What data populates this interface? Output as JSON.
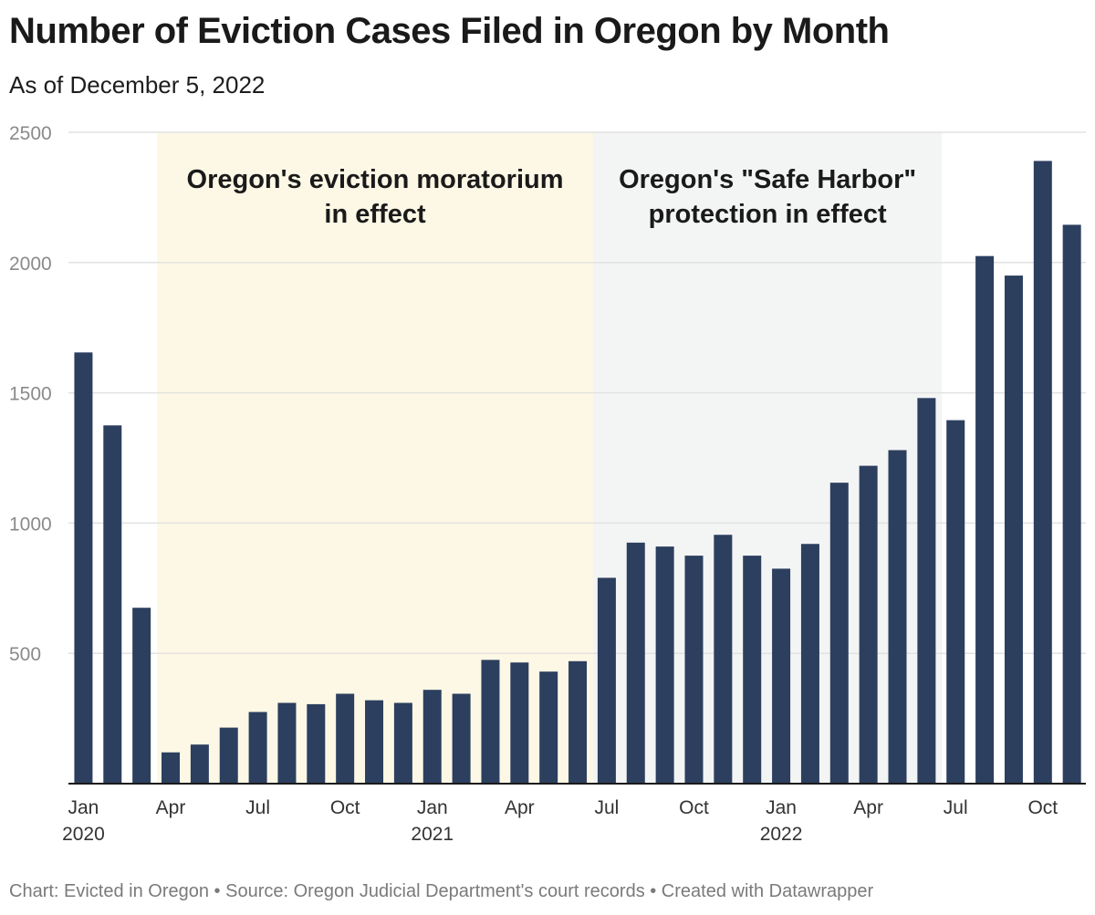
{
  "header": {
    "title": "Number of Eviction Cases Filed in Oregon by Month",
    "subtitle": "As of December 5, 2022"
  },
  "footer": {
    "credit": "Chart: Evicted in Oregon • Source: Oregon Judicial Department's court records • Created with Datawrapper"
  },
  "colors": {
    "bar": "#2c3f5f",
    "moratorium_band": "#fdf8e5",
    "safe_harbor_band": "#f3f4f4",
    "grid": "#e2e2e2",
    "axis": "#1a1a1a"
  },
  "chart_data": {
    "type": "bar",
    "title": "Number of Eviction Cases Filed in Oregon by Month",
    "subtitle": "As of December 5, 2022",
    "xlabel": "",
    "ylabel": "",
    "ylim": [
      0,
      2500
    ],
    "yticks": [
      500,
      1000,
      1500,
      2000,
      2500
    ],
    "grid": true,
    "categories": [
      "Jan 2020",
      "Feb 2020",
      "Mar 2020",
      "Apr 2020",
      "May 2020",
      "Jun 2020",
      "Jul 2020",
      "Aug 2020",
      "Sep 2020",
      "Oct 2020",
      "Nov 2020",
      "Dec 2020",
      "Jan 2021",
      "Feb 2021",
      "Mar 2021",
      "Apr 2021",
      "May 2021",
      "Jun 2021",
      "Jul 2021",
      "Aug 2021",
      "Sep 2021",
      "Oct 2021",
      "Nov 2021",
      "Dec 2021",
      "Jan 2022",
      "Feb 2022",
      "Mar 2022",
      "Apr 2022",
      "May 2022",
      "Jun 2022",
      "Jul 2022",
      "Aug 2022",
      "Sep 2022",
      "Oct 2022",
      "Nov 2022"
    ],
    "values": [
      1655,
      1375,
      675,
      120,
      150,
      215,
      275,
      310,
      305,
      345,
      320,
      310,
      360,
      345,
      475,
      465,
      430,
      470,
      790,
      925,
      910,
      875,
      955,
      875,
      825,
      920,
      1155,
      1220,
      1280,
      1480,
      1395,
      2025,
      1950,
      2390,
      2145
    ],
    "x_tick_labels": [
      {
        "index": 0,
        "label": "Jan",
        "year": "2020"
      },
      {
        "index": 3,
        "label": "Apr"
      },
      {
        "index": 6,
        "label": "Jul"
      },
      {
        "index": 9,
        "label": "Oct"
      },
      {
        "index": 12,
        "label": "Jan",
        "year": "2021"
      },
      {
        "index": 15,
        "label": "Apr"
      },
      {
        "index": 18,
        "label": "Jul"
      },
      {
        "index": 21,
        "label": "Oct"
      },
      {
        "index": 24,
        "label": "Jan",
        "year": "2022"
      },
      {
        "index": 27,
        "label": "Apr"
      },
      {
        "index": 30,
        "label": "Jul"
      },
      {
        "index": 33,
        "label": "Oct"
      }
    ],
    "annotations": [
      {
        "label_lines": [
          "Oregon's eviction moratorium",
          "in effect"
        ],
        "start_index": 3,
        "end_index": 17,
        "color": "#fdf8e5"
      },
      {
        "label_lines": [
          "Oregon's \"Safe Harbor\"",
          "protection in effect"
        ],
        "start_index": 18,
        "end_index": 29,
        "color": "#f3f4f4"
      }
    ]
  }
}
